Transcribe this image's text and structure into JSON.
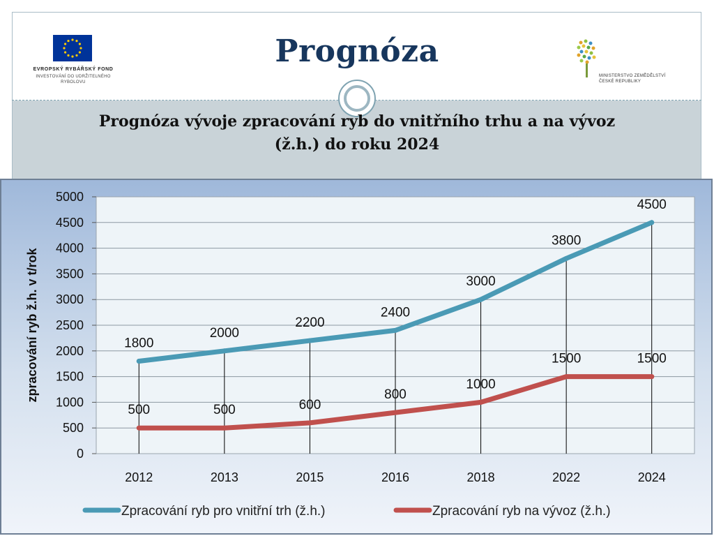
{
  "header": {
    "title": "Prognóza",
    "subtitle_line1": "Prognóza vývoje zpracování ryb do vnitřního trhu a na vývoz",
    "subtitle_line2": "(ž.h.) do roku 2024"
  },
  "logos": {
    "eu_fund_name": "EVROPSKÝ RYBÁŘSKÝ FOND",
    "eu_fund_sub1": "INVESTOVÁNÍ DO UDRŽITELNÉHO",
    "eu_fund_sub2": "RYBOLOVU",
    "ministry_line1": "MINISTERSTVO ZEMĚDĚLSTVÍ",
    "ministry_line2": "ČESKÉ REPUBLIKY"
  },
  "colors": {
    "title": "#17365d",
    "series_domestic": "#4a9ab5",
    "series_export": "#c0504d",
    "plot_background": "#eef4f8",
    "chart_background_top": "#9fb8da",
    "chart_background_bottom": "#f0f4fa"
  },
  "chart_data": {
    "type": "line",
    "title": "Prognóza vývoje zpracování ryb do vnitřního trhu a na vývoz (ž.h.) do roku 2024",
    "xlabel": "",
    "ylabel": "zpracování ryb ž.h. v t/rok",
    "ylim": [
      0,
      5000
    ],
    "ytick_step": 500,
    "grid": true,
    "legend_position": "bottom",
    "categories": [
      "2012",
      "2013",
      "2015",
      "2016",
      "2018",
      "2022",
      "2024"
    ],
    "series": [
      {
        "name": "Zpracování ryb pro vnitřní trh (ž.h.)",
        "color": "#4a9ab5",
        "values": [
          1800,
          2000,
          2200,
          2400,
          3000,
          3800,
          4500
        ]
      },
      {
        "name": "Zpracování ryb na vývoz (ž.h.)",
        "color": "#c0504d",
        "values": [
          500,
          500,
          600,
          800,
          1000,
          1500,
          1500
        ]
      }
    ]
  }
}
